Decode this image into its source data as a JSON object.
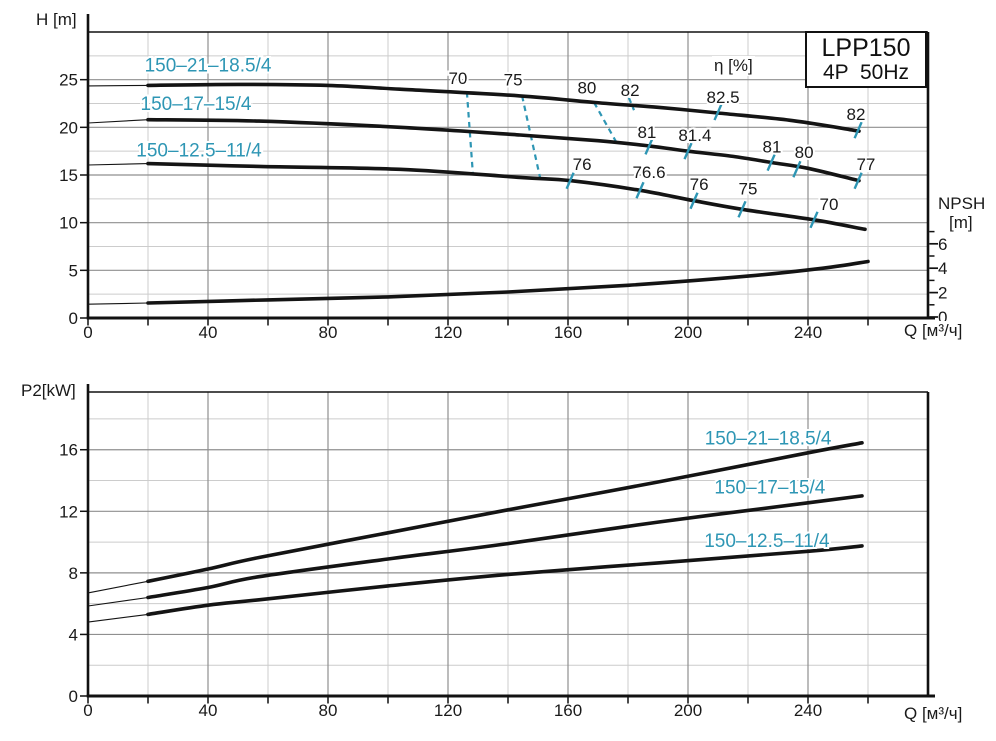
{
  "colors": {
    "accent": "#2e96b4",
    "curve": "#141414",
    "axis": "#111111",
    "grid_major": "#8f8f8f",
    "grid_minor": "#cccccc",
    "text": "#1a1a1a",
    "background": "#ffffff"
  },
  "title_box": {
    "model": "LPP150",
    "spec": "4P  50Hz"
  },
  "labels": {
    "h_axis": "H [m]",
    "q_axis": "Q [м³/ч]",
    "npsh": "NPSH",
    "npsh_unit": "[m]",
    "eta": "η [%]",
    "p2_axis": "P2[kW]"
  },
  "chart_data": [
    {
      "id": "head-curves",
      "type": "line",
      "title": "LPP150 4P 50Hz head / NPSH curves",
      "xlabel": "Q [м³/ч]",
      "ylabel": "H [m]",
      "y2label": "NPSH [m]",
      "xlim": [
        0,
        280
      ],
      "ylim": [
        0,
        30
      ],
      "y2lim": [
        0,
        7.5
      ],
      "x_major_ticks": [
        0,
        40,
        80,
        120,
        160,
        200,
        240
      ],
      "x_minor_step": 20,
      "y_major_ticks": [
        0,
        5,
        10,
        15,
        20,
        25
      ],
      "y_minor_step": 2.5,
      "y2_major_ticks": [
        0,
        2,
        4,
        6
      ],
      "y2_minor_ticks": [
        1,
        3,
        5,
        7
      ],
      "grid": true,
      "series": [
        {
          "name": "150–21–18.5/4",
          "thin_until": 20,
          "label_at": [
            40,
            26.6
          ],
          "points": [
            [
              0,
              24.35
            ],
            [
              20,
              24.4
            ],
            [
              50,
              24.5
            ],
            [
              80,
              24.4
            ],
            [
              104,
              24.0
            ],
            [
              144,
              23.3
            ],
            [
              169,
              22.6
            ],
            [
              190,
              22.1
            ],
            [
              210,
              21.5
            ],
            [
              235,
              20.7
            ],
            [
              257,
              19.6
            ]
          ]
        },
        {
          "name": "150–17–15/4",
          "thin_until": 20,
          "label_at": [
            36,
            22.55
          ],
          "points": [
            [
              0,
              20.45
            ],
            [
              20,
              20.8
            ],
            [
              57,
              20.65
            ],
            [
              104,
              20.0
            ],
            [
              144,
              19.2
            ],
            [
              170,
              18.6
            ],
            [
              187,
              18.05
            ],
            [
              200,
              17.5
            ],
            [
              215,
              16.95
            ],
            [
              228,
              16.3
            ],
            [
              240,
              15.7
            ],
            [
              257,
              14.4
            ]
          ]
        },
        {
          "name": "150–12.5–11/4",
          "thin_until": 20,
          "label_at": [
            37,
            17.7
          ],
          "points": [
            [
              0,
              16.05
            ],
            [
              20,
              16.2
            ],
            [
              57,
              15.9
            ],
            [
              104,
              15.6
            ],
            [
              144,
              14.75
            ],
            [
              161,
              14.4
            ],
            [
              184,
              13.4
            ],
            [
              202,
              12.3
            ],
            [
              218,
              11.4
            ],
            [
              242,
              10.3
            ],
            [
              259,
              9.3
            ]
          ]
        },
        {
          "name": "NPSH",
          "axis": "y2",
          "thin_until": 20,
          "points": [
            [
              0,
              1.05
            ],
            [
              20,
              1.15
            ],
            [
              60,
              1.4
            ],
            [
              100,
              1.65
            ],
            [
              140,
              2.05
            ],
            [
              180,
              2.6
            ],
            [
              220,
              3.35
            ],
            [
              245,
              4.0
            ],
            [
              260,
              4.55
            ]
          ]
        }
      ],
      "efficiency": {
        "dashed": [
          {
            "value": "70",
            "label_at": [
              123.3,
              25.2
            ],
            "from": [
              126.3,
              23.7
            ],
            "to": [
              128.3,
              15.1
            ]
          },
          {
            "value": "75",
            "label_at": [
              141.7,
              25.0
            ],
            "from": [
              144.7,
              23.3
            ],
            "to": [
              150.7,
              14.7
            ]
          },
          {
            "value": "80",
            "label_at": [
              166.3,
              24.2
            ],
            "from": [
              168.7,
              22.6
            ],
            "to": [
              176.0,
              18.5
            ]
          },
          {
            "value": "82",
            "label_at": [
              180.7,
              23.9
            ],
            "from": [
              180.3,
              23.1
            ],
            "to": [
              182.0,
              21.8
            ]
          }
        ],
        "ticks": [
          {
            "value": "82.5",
            "at": [
              210,
              21.6
            ],
            "label_at": [
              211.7,
              23.2
            ]
          },
          {
            "value": "82",
            "at": [
              256.7,
              19.7
            ],
            "label_at": [
              256.0,
              21.4
            ]
          },
          {
            "value": "81",
            "at": [
              187,
              18.0
            ],
            "label_at": [
              186.3,
              19.5
            ]
          },
          {
            "value": "81.4",
            "at": [
              200,
              17.5
            ],
            "label_at": [
              202.3,
              19.2
            ]
          },
          {
            "value": "81",
            "at": [
              227.7,
              16.3
            ],
            "label_at": [
              228.0,
              18.0
            ]
          },
          {
            "value": "80",
            "at": [
              236.3,
              15.6
            ],
            "label_at": [
              238.7,
              17.4
            ]
          },
          {
            "value": "77",
            "at": [
              256.7,
              14.4
            ],
            "label_at": [
              259.3,
              16.15
            ]
          },
          {
            "value": "76",
            "at": [
              160.7,
              14.4
            ],
            "label_at": [
              164.7,
              16.15
            ]
          },
          {
            "value": "76.6",
            "at": [
              184,
              13.4
            ],
            "label_at": [
              187.0,
              15.3
            ]
          },
          {
            "value": "76",
            "at": [
              202,
              12.3
            ],
            "label_at": [
              203.7,
              14.05
            ]
          },
          {
            "value": "75",
            "at": [
              218,
              11.4
            ],
            "label_at": [
              220.0,
              13.6
            ]
          },
          {
            "value": "70",
            "at": [
              242,
              10.3
            ],
            "label_at": [
              247.0,
              11.95
            ]
          }
        ]
      }
    },
    {
      "id": "power-curves",
      "type": "line",
      "title": "LPP150 4P 50Hz shaft power curves",
      "xlabel": "Q [м³/ч]",
      "ylabel": "P2[kW]",
      "xlim": [
        0,
        280
      ],
      "ylim": [
        0,
        19.75
      ],
      "x_major_ticks": [
        0,
        40,
        80,
        120,
        160,
        200,
        240
      ],
      "x_minor_step": 20,
      "y_major_ticks": [
        0,
        4,
        8,
        12,
        16
      ],
      "y_minor_step": 2,
      "grid": true,
      "series": [
        {
          "name": "150–21–18.5/4",
          "thin_until": 20,
          "label_at": [
            226.7,
            16.8
          ],
          "points": [
            [
              0,
              6.7
            ],
            [
              20,
              7.45
            ],
            [
              40,
              8.25
            ],
            [
              57,
              9.0
            ],
            [
              100,
              10.6
            ],
            [
              140,
              12.1
            ],
            [
              190,
              13.9
            ],
            [
              240,
              15.8
            ],
            [
              258,
              16.45
            ]
          ]
        },
        {
          "name": "150–17–15/4",
          "thin_until": 20,
          "label_at": [
            227.3,
            13.6
          ],
          "points": [
            [
              0,
              5.85
            ],
            [
              20,
              6.4
            ],
            [
              40,
              7.05
            ],
            [
              57,
              7.75
            ],
            [
              100,
              8.9
            ],
            [
              140,
              9.9
            ],
            [
              190,
              11.3
            ],
            [
              240,
              12.55
            ],
            [
              258,
              13.0
            ]
          ]
        },
        {
          "name": "150–12.5–11/4",
          "thin_until": 20,
          "label_at": [
            226.3,
            10.15
          ],
          "points": [
            [
              0,
              4.8
            ],
            [
              20,
              5.3
            ],
            [
              40,
              5.9
            ],
            [
              57,
              6.25
            ],
            [
              100,
              7.15
            ],
            [
              140,
              7.9
            ],
            [
              190,
              8.65
            ],
            [
              240,
              9.4
            ],
            [
              258,
              9.75
            ]
          ]
        }
      ]
    }
  ]
}
